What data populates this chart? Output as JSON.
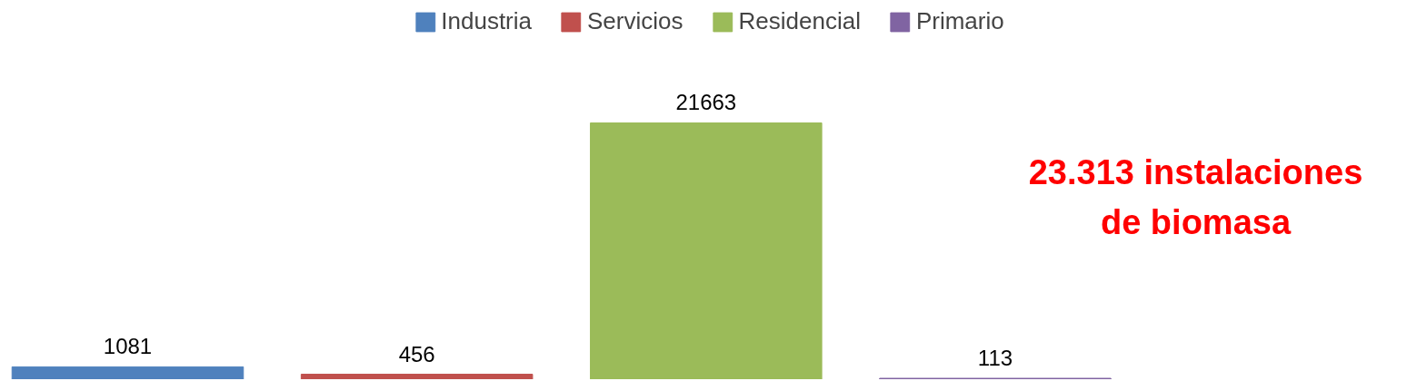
{
  "chart_data": {
    "type": "bar",
    "categories": [
      null
    ],
    "series": [
      {
        "name": "Industria",
        "color": "#4f81bd",
        "values": [
          1081
        ]
      },
      {
        "name": "Servicios",
        "color": "#c0504d",
        "values": [
          456
        ]
      },
      {
        "name": "Residencial",
        "color": "#9bbb59",
        "values": [
          21663
        ]
      },
      {
        "name": "Primario",
        "color": "#8064a2",
        "values": [
          113
        ]
      }
    ],
    "data_labels": true,
    "legend": "top",
    "annotations": [
      "23.313 instalaciones\nde biomasa"
    ]
  }
}
